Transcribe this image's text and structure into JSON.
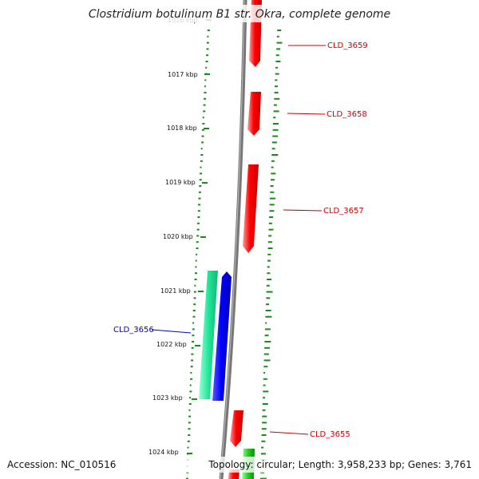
{
  "title": "Clostridium botulinum B1 str. Okra, complete genome",
  "footer": {
    "accession": "Accession: NC_010516",
    "summary": "Topology: circular; Length: 3,958,233 bp; Genes: 3,761"
  },
  "ticks": [
    {
      "label": "1016 kbp"
    },
    {
      "label": "1017 kbp"
    },
    {
      "label": "1018 kbp"
    },
    {
      "label": "1019 kbp"
    },
    {
      "label": "1020 kbp"
    },
    {
      "label": "1021 kbp"
    },
    {
      "label": "1022 kbp"
    },
    {
      "label": "1023 kbp"
    },
    {
      "label": "1024 kbp"
    }
  ],
  "genes": [
    {
      "name": "CLD_3659",
      "strand": "reverse",
      "color": "#cc0000"
    },
    {
      "name": "CLD_3658",
      "strand": "reverse",
      "color": "#cc0000"
    },
    {
      "name": "CLD_3657",
      "strand": "reverse",
      "color": "#cc0000"
    },
    {
      "name": "CLD_3656",
      "strand": "forward",
      "color": "#0000cc"
    },
    {
      "name": "CLD_3655",
      "strand": "reverse",
      "color": "#cc0000"
    }
  ],
  "colors": {
    "backbone": "#7f7f7f",
    "gc_dots": "#1a8a1a",
    "reverse_cds": "#ff0000",
    "forward_cds": "#0000ff",
    "feature_green": "#22dd99"
  }
}
